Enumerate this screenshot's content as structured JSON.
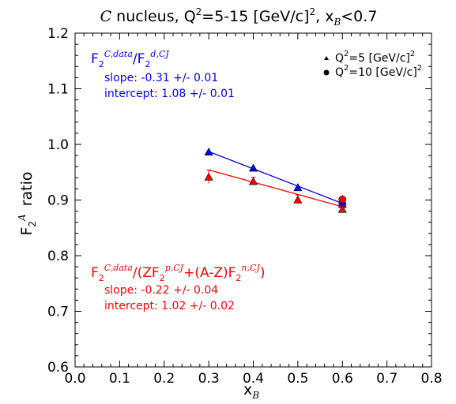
{
  "chart_data": {
    "type": "scatter",
    "title_prefix": "C",
    "title_rest": " nucleus, Q",
    "title_sup": "2",
    "title_tail": "=5-15 [GeV/c]",
    "title_sup2": "2",
    "title_tail2": ", x",
    "title_sub": "B",
    "title_tail3": "<0.7",
    "xlabel": "x",
    "xlabel_sub": "B",
    "ylabel": "F",
    "ylabel_sub": "2",
    "ylabel_sup": "A",
    "ylabel_tail": "ratio",
    "xlim": [
      0.0,
      0.8
    ],
    "ylim": [
      0.6,
      1.2
    ],
    "xticks": [
      "0.0",
      "0.1",
      "0.2",
      "0.3",
      "0.4",
      "0.5",
      "0.6",
      "0.7",
      "0.8"
    ],
    "yticks": [
      "0.6",
      "0.7",
      "0.8",
      "0.9",
      "1.0",
      "1.1",
      "1.2"
    ],
    "legend": {
      "position": "top-right",
      "entries": [
        {
          "marker": "triangle",
          "label": "Q",
          "sup": "2",
          "tail": "=5 [GeV/c]",
          "sup2": "2"
        },
        {
          "marker": "circle",
          "label": "Q",
          "sup": "2",
          "tail": "=10 [GeV/c]",
          "sup2": "2"
        }
      ]
    },
    "series": [
      {
        "color": "#0000ff",
        "fit": {
          "slope": -0.31,
          "intercept": 1.08
        },
        "fit_x": [
          0.3,
          0.6
        ],
        "points_triangle": [
          {
            "x": 0.3,
            "y": 0.987
          },
          {
            "x": 0.4,
            "y": 0.958
          },
          {
            "x": 0.5,
            "y": 0.923
          },
          {
            "x": 0.6,
            "y": 0.893
          }
        ],
        "points_circle": [
          {
            "x": 0.6,
            "y": 0.893
          }
        ]
      },
      {
        "color": "#ff0000",
        "fit": {
          "slope": -0.22,
          "intercept": 1.02
        },
        "fit_x": [
          0.3,
          0.6
        ],
        "points_triangle": [
          {
            "x": 0.3,
            "y": 0.942,
            "err": 0.012
          },
          {
            "x": 0.4,
            "y": 0.934,
            "err": 0.007
          },
          {
            "x": 0.5,
            "y": 0.901,
            "err": 0.008
          },
          {
            "x": 0.6,
            "y": 0.884,
            "err": 0.005
          }
        ],
        "points_circle": [
          {
            "x": 0.6,
            "y": 0.901,
            "err": 0.008
          }
        ]
      }
    ],
    "annotations": {
      "blue": {
        "f": "F",
        "sub": "2",
        "sup": "C,data",
        "slash": "/F",
        "sub2": "2",
        "sup2": "d,CJ",
        "slope_text": "slope: -0.31 +/- 0.01",
        "intercept_text": "intercept: 1.08 +/- 0.01"
      },
      "red": {
        "f": "F",
        "sub": "2",
        "sup": "C,data",
        "mid": "/(ZF",
        "sub2": "2",
        "sup2": "p,CJ",
        "mid2": "+(A-Z)F",
        "sub3": "2",
        "sup3": "n,CJ",
        "close": ")",
        "slope_text": "slope: -0.22 +/- 0.04",
        "intercept_text": "intercept: 1.02 +/- 0.02"
      }
    }
  }
}
